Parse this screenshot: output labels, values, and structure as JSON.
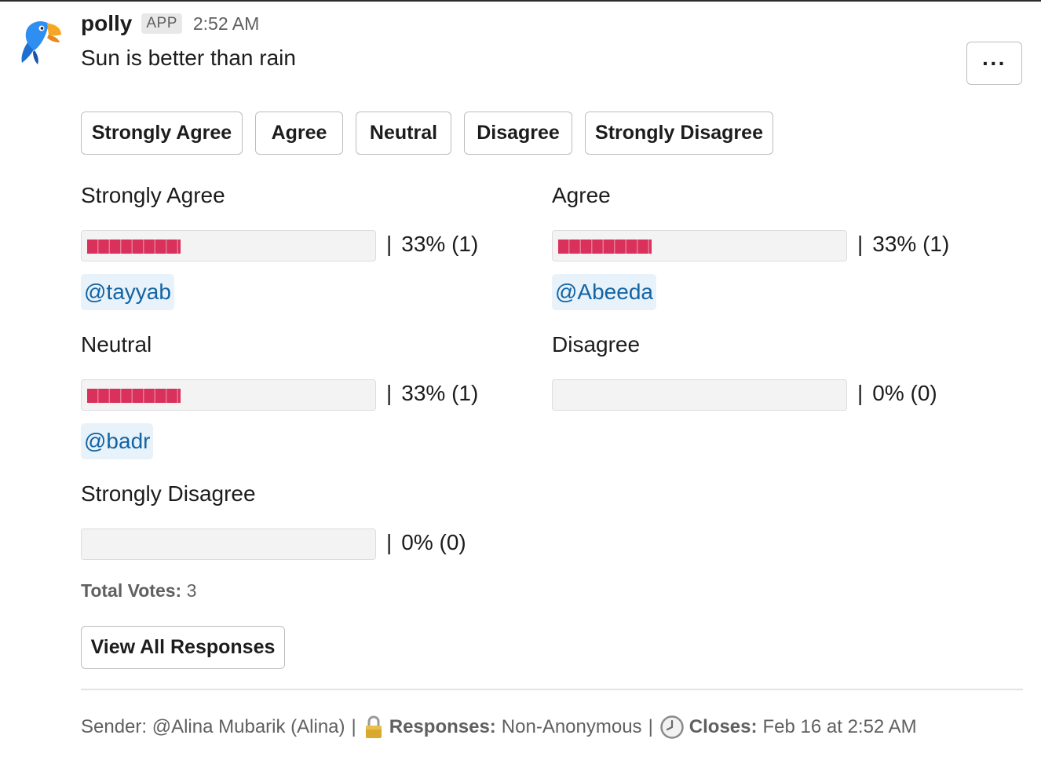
{
  "message": {
    "sender": "polly",
    "badge": "APP",
    "timestamp": "2:52 AM",
    "question": "Sun is better than rain",
    "more_label": "···"
  },
  "vote_buttons": [
    "Strongly Agree",
    "Agree",
    "Neutral",
    "Disagree",
    "Strongly Disagree"
  ],
  "results": [
    {
      "label": "Strongly Agree",
      "percent_text": "33% (1)",
      "fill_fraction": 0.33,
      "voter": "@tayyab"
    },
    {
      "label": "Agree",
      "percent_text": "33% (1)",
      "fill_fraction": 0.33,
      "voter": "@Abeeda"
    },
    {
      "label": "Neutral",
      "percent_text": "33% (1)",
      "fill_fraction": 0.33,
      "voter": "@badr"
    },
    {
      "label": "Disagree",
      "percent_text": "0% (0)",
      "fill_fraction": 0
    },
    {
      "label": "Strongly Disagree",
      "percent_text": "0% (0)",
      "fill_fraction": 0
    }
  ],
  "pipe": "|",
  "total": {
    "label": "Total Votes:",
    "value": "3"
  },
  "view_all_label": "View All Responses",
  "footer": {
    "sender_text": "Sender: @Alina Mubarik (Alina)",
    "separator": "|",
    "responses_label": "Responses:",
    "responses_value": "Non-Anonymous",
    "closes_label": "Closes:",
    "closes_value": "Feb 16 at 2:52 AM",
    "lock_icon": "lock-icon",
    "clock_icon": "clock-icon"
  },
  "colors": {
    "bar_fill": "#d9315c",
    "mention_text": "#1264a3",
    "mention_bg": "#e8f2fb"
  }
}
